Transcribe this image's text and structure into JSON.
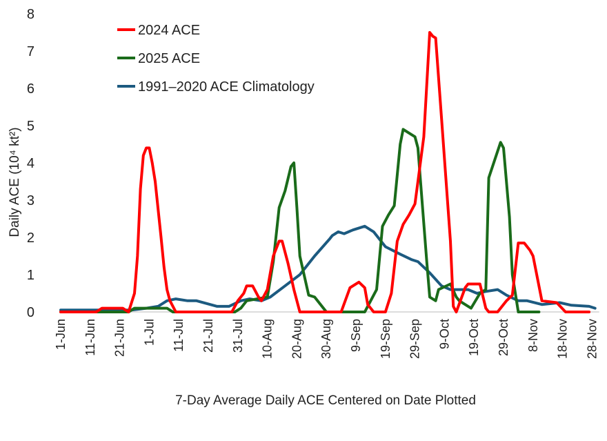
{
  "chart_data": {
    "type": "line",
    "title": "",
    "xlabel": "7-Day Average Daily ACE Centered on Date Plotted",
    "ylabel": "Daily ACE (10⁴ kt²)",
    "ylim": [
      0,
      8
    ],
    "yticks": [
      "0",
      "1",
      "2",
      "3",
      "4",
      "5",
      "6",
      "7",
      "8"
    ],
    "xlim": [
      "1-Jun",
      "29-Nov"
    ],
    "xticks": [
      "1-Jun",
      "11-Jun",
      "21-Jun",
      "1-Jul",
      "11-Jul",
      "21-Jul",
      "31-Jul",
      "10-Aug",
      "20-Aug",
      "30-Aug",
      "9-Sep",
      "19-Sep",
      "29-Sep",
      "9-Oct",
      "19-Oct",
      "29-Oct",
      "8-Nov",
      "18-Nov",
      "28-Nov"
    ],
    "grid": false,
    "legend_position": "top-left",
    "series": [
      {
        "name": "2024 ACE",
        "color": "#ff0000",
        "x": [
          "1-Jun",
          "13-Jun",
          "15-Jun",
          "22-Jun",
          "24-Jun",
          "26-Jun",
          "27-Jun",
          "28-Jun",
          "29-Jun",
          "30-Jun",
          "1-Jul",
          "2-Jul",
          "3-Jul",
          "5-Jul",
          "6-Jul",
          "7-Jul",
          "8-Jul",
          "10-Jul",
          "29-Jul",
          "31-Jul",
          "2-Aug",
          "3-Aug",
          "5-Aug",
          "7-Aug",
          "8-Aug",
          "10-Aug",
          "12-Aug",
          "14-Aug",
          "15-Aug",
          "17-Aug",
          "19-Aug",
          "21-Aug",
          "4-Sep",
          "7-Sep",
          "10-Sep",
          "12-Sep",
          "13-Sep",
          "15-Sep",
          "19-Sep",
          "21-Sep",
          "23-Sep",
          "25-Sep",
          "27-Sep",
          "29-Sep",
          "30-Sep",
          "2-Oct",
          "4-Oct",
          "5-Oct",
          "6-Oct",
          "8-Oct",
          "11-Oct",
          "12-Oct",
          "13-Oct",
          "16-Oct",
          "17-Oct",
          "21-Oct",
          "23-Oct",
          "24-Oct",
          "27-Oct",
          "30-Oct",
          "1-Nov",
          "3-Nov",
          "5-Nov",
          "7-Nov",
          "8-Nov",
          "11-Nov",
          "16-Nov",
          "19-Nov",
          "27-Nov"
        ],
        "values": [
          0,
          0,
          0.1,
          0.1,
          0,
          0.5,
          1.5,
          3.3,
          4.2,
          4.4,
          4.4,
          4.0,
          3.5,
          2.0,
          1.2,
          0.6,
          0.3,
          0,
          0,
          0.3,
          0.5,
          0.7,
          0.7,
          0.4,
          0.3,
          0.6,
          1.5,
          1.9,
          1.9,
          1.3,
          0.6,
          0,
          0,
          0.65,
          0.8,
          0.65,
          0.2,
          0,
          0,
          0.5,
          1.9,
          2.35,
          2.6,
          2.9,
          3.5,
          4.7,
          7.5,
          7.4,
          7.35,
          5.2,
          1.9,
          0.15,
          0,
          0.65,
          0.75,
          0.75,
          0.1,
          0,
          0,
          0.3,
          0.45,
          1.85,
          1.85,
          1.65,
          1.5,
          0.3,
          0.25,
          0,
          0
        ]
      },
      {
        "name": "2025 ACE",
        "color": "#1a6b1a",
        "x": [
          "1-Jun",
          "24-Jun",
          "26-Jun",
          "7-Jul",
          "9-Jul",
          "30-Jul",
          "1-Aug",
          "3-Aug",
          "10-Aug",
          "12-Aug",
          "14-Aug",
          "16-Aug",
          "18-Aug",
          "19-Aug",
          "20-Aug",
          "21-Aug",
          "24-Aug",
          "26-Aug",
          "30-Aug",
          "12-Sep",
          "16-Sep",
          "18-Sep",
          "20-Sep",
          "22-Sep",
          "24-Sep",
          "25-Sep",
          "27-Sep",
          "29-Sep",
          "30-Sep",
          "3-Oct",
          "4-Oct",
          "6-Oct",
          "7-Oct",
          "11-Oct",
          "13-Oct",
          "14-Oct",
          "18-Oct",
          "21-Oct",
          "23-Oct",
          "24-Oct",
          "28-Oct",
          "29-Oct",
          "31-Oct",
          "1-Nov",
          "3-Nov",
          "10-Nov"
        ],
        "values": [
          0,
          0,
          0.1,
          0.1,
          0,
          0,
          0.1,
          0.3,
          0.4,
          1.35,
          2.8,
          3.25,
          3.9,
          4.0,
          2.8,
          1.5,
          0.45,
          0.4,
          0,
          0,
          0.6,
          2.3,
          2.6,
          2.85,
          4.5,
          4.9,
          4.8,
          4.7,
          4.4,
          1.35,
          0.4,
          0.3,
          0.6,
          0.75,
          0.4,
          0.3,
          0.1,
          0.5,
          0.6,
          3.6,
          4.55,
          4.4,
          2.55,
          1.0,
          0,
          0
        ]
      },
      {
        "name": "1991–2020 ACE Climatology",
        "color": "#1c5a80",
        "x": [
          "1-Jun",
          "25-Jun",
          "30-Jun",
          "4-Jul",
          "7-Jul",
          "10-Jul",
          "14-Jul",
          "17-Jul",
          "24-Jul",
          "28-Jul",
          "1-Aug",
          "4-Aug",
          "8-Aug",
          "11-Aug",
          "16-Aug",
          "21-Aug",
          "26-Aug",
          "31-Aug",
          "1-Sep",
          "3-Sep",
          "5-Sep",
          "8-Sep",
          "12-Sep",
          "15-Sep",
          "19-Sep",
          "24-Sep",
          "28-Sep",
          "30-Sep",
          "4-Oct",
          "8-Oct",
          "11-Oct",
          "17-Oct",
          "20-Oct",
          "23-Oct",
          "27-Oct",
          "30-Oct",
          "3-Nov",
          "6-Nov",
          "11-Nov",
          "17-Nov",
          "21-Nov",
          "27-Nov",
          "29-Nov"
        ],
        "values": [
          0.05,
          0.05,
          0.1,
          0.15,
          0.3,
          0.35,
          0.3,
          0.3,
          0.15,
          0.15,
          0.3,
          0.35,
          0.3,
          0.4,
          0.7,
          1.0,
          1.5,
          1.95,
          2.05,
          2.15,
          2.1,
          2.2,
          2.3,
          2.15,
          1.75,
          1.55,
          1.4,
          1.35,
          1.05,
          0.7,
          0.6,
          0.6,
          0.5,
          0.55,
          0.6,
          0.45,
          0.3,
          0.3,
          0.2,
          0.25,
          0.18,
          0.15,
          0.1
        ]
      }
    ]
  }
}
